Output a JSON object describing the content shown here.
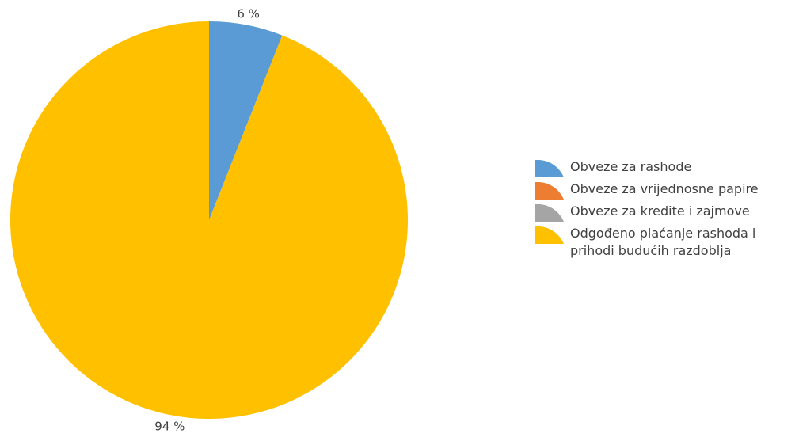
{
  "chart_data": {
    "type": "pie",
    "categories": [
      "Obveze za rashode",
      "Obveze za vrijednosne papire",
      "Obveze za kredite i zajmove",
      "Odgođeno plaćanje rashoda i prihodi budućih razdoblja"
    ],
    "values": [
      6,
      0,
      0,
      94
    ],
    "data_labels": [
      "6 %",
      "",
      "",
      "94 %"
    ],
    "colors": [
      "#5b9bd5",
      "#ed7d31",
      "#a5a5a5",
      "#ffc000"
    ],
    "legend": "right",
    "title": ""
  }
}
